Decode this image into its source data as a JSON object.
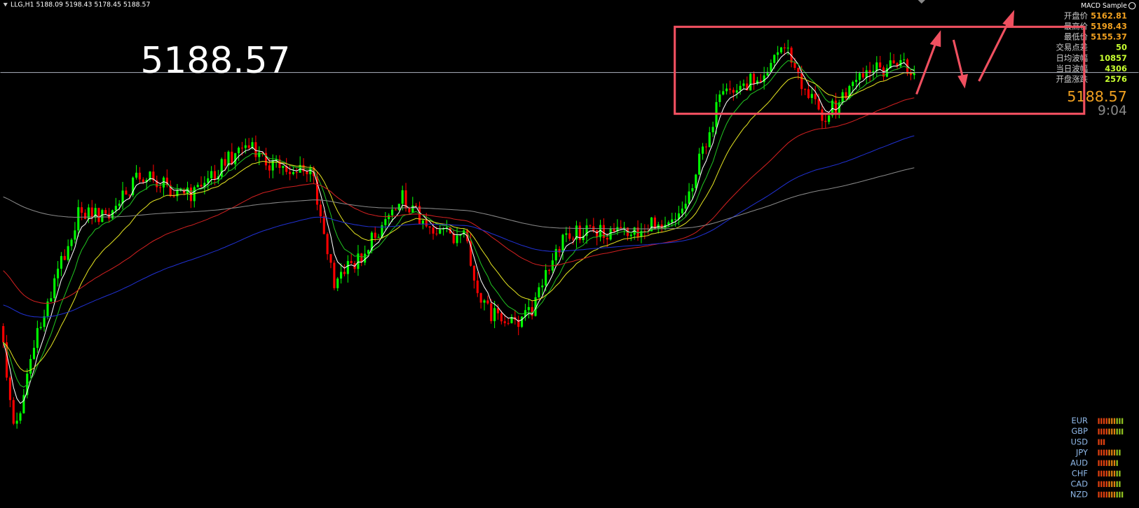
{
  "header": {
    "symbol_line": "LLG,H1  5188.09 5198.43 5178.45 5188.57"
  },
  "big_price": "5188.57",
  "indicator": "MACD Sample",
  "info": {
    "rows": [
      {
        "label": "开盘价",
        "value": "5162.81"
      },
      {
        "label": "最高价",
        "value": "5198.43"
      },
      {
        "label": "最低价",
        "value": "5155.37"
      },
      {
        "label": "交易点差",
        "value": "50"
      },
      {
        "label": "日均波幅",
        "value": "10857"
      },
      {
        "label": "当日波幅",
        "value": "4306"
      },
      {
        "label": "开盘涨跌",
        "value": "2576"
      }
    ]
  },
  "price": "5188.57",
  "time": "9:04",
  "currencies": [
    "EUR",
    "GBP",
    "USD",
    "JPY",
    "AUD",
    "CHF",
    "CAD",
    "NZD"
  ]
}
